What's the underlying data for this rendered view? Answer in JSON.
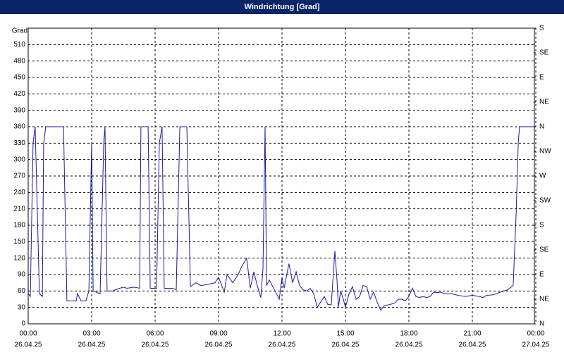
{
  "chart_data": {
    "type": "line",
    "title": "Windrichtung [Grad]",
    "ylabel": "Grad",
    "color": "#1a1aa6",
    "grid": true,
    "xlim": [
      0,
      24
    ],
    "xticks": [
      {
        "value": 0,
        "label": "00:00"
      },
      {
        "value": 3,
        "label": "03:00"
      },
      {
        "value": 6,
        "label": "06:00"
      },
      {
        "value": 9,
        "label": "09:00"
      },
      {
        "value": 12,
        "label": "12:00"
      },
      {
        "value": 15,
        "label": "15:00"
      },
      {
        "value": 18,
        "label": "18:00"
      },
      {
        "value": 21,
        "label": "21:00"
      },
      {
        "value": 24,
        "label": "00:00"
      }
    ],
    "xtick_dates": [
      "26.04.25",
      "26.04.25",
      "26.04.25",
      "26.04.25",
      "26.04.25",
      "26.04.25",
      "26.04.25",
      "26.04.25",
      "27.04.25"
    ],
    "ylim": [
      0,
      540
    ],
    "yticks": [
      0,
      30,
      60,
      90,
      120,
      150,
      180,
      210,
      240,
      270,
      300,
      330,
      360,
      390,
      420,
      450,
      480,
      510
    ],
    "y2lim": [
      0,
      540
    ],
    "y2ticks": [
      {
        "value": 0,
        "label": "N"
      },
      {
        "value": 45,
        "label": "NE"
      },
      {
        "value": 90,
        "label": "E"
      },
      {
        "value": 135,
        "label": "SE"
      },
      {
        "value": 180,
        "label": "S"
      },
      {
        "value": 225,
        "label": "SW"
      },
      {
        "value": 270,
        "label": "W"
      },
      {
        "value": 315,
        "label": "NW"
      },
      {
        "value": 360,
        "label": "N"
      },
      {
        "value": 405,
        "label": "NE"
      },
      {
        "value": 450,
        "label": "E"
      },
      {
        "value": 495,
        "label": "SE"
      },
      {
        "value": 540,
        "label": "S"
      }
    ],
    "x": [
      0,
      0.1,
      0.23,
      0.33,
      0.53,
      0.67,
      0.73,
      0.83,
      1.67,
      1.83,
      2.27,
      2.33,
      2.5,
      2.73,
      2.87,
      3,
      3.07,
      3.4,
      3.57,
      3.63,
      3.73,
      4,
      4.17,
      4.5,
      4.67,
      5,
      5.27,
      5.33,
      5.67,
      5.77,
      6.07,
      6.2,
      6.33,
      6.43,
      6.83,
      7,
      7.17,
      7.5,
      7.67,
      7.93,
      8.17,
      8.5,
      8.83,
      9,
      9.27,
      9.4,
      9.67,
      9.93,
      10.1,
      10.33,
      10.5,
      10.67,
      10.83,
      11,
      11.1,
      11.2,
      11.27,
      11.4,
      11.67,
      11.87,
      12,
      12.1,
      12.33,
      12.5,
      12.67,
      12.83,
      13,
      13.17,
      13.33,
      13.5,
      13.67,
      13.83,
      14,
      14.17,
      14.33,
      14.5,
      14.6,
      14.67,
      14.77,
      14.9,
      15,
      15.17,
      15.33,
      15.5,
      15.67,
      15.83,
      16,
      16.17,
      16.33,
      16.5,
      16.67,
      16.83,
      17.07,
      17.33,
      17.5,
      17.67,
      17.83,
      18,
      18.17,
      18.33,
      18.5,
      18.67,
      18.83,
      19,
      19.17,
      19.33,
      19.5,
      19.67,
      20,
      20.33,
      20.67,
      21,
      21.33,
      21.5,
      21.67,
      22,
      22.33,
      22.67,
      22.93,
      23.07,
      23.17,
      23.23,
      23.93
    ],
    "values": [
      55,
      50,
      330,
      360,
      55,
      50,
      330,
      360,
      360,
      42,
      42,
      55,
      42,
      42,
      60,
      330,
      60,
      55,
      330,
      360,
      60,
      60,
      63,
      67,
      65,
      67,
      65,
      360,
      360,
      65,
      65,
      330,
      360,
      65,
      65,
      62,
      360,
      360,
      68,
      75,
      70,
      72,
      75,
      85,
      58,
      90,
      75,
      90,
      105,
      120,
      65,
      95,
      70,
      48,
      100,
      360,
      70,
      80,
      60,
      45,
      85,
      65,
      110,
      75,
      95,
      70,
      62,
      60,
      65,
      55,
      30,
      40,
      50,
      35,
      35,
      133,
      80,
      30,
      60,
      45,
      30,
      55,
      68,
      45,
      50,
      70,
      68,
      45,
      58,
      40,
      25,
      33,
      35,
      38,
      45,
      45,
      42,
      50,
      65,
      50,
      48,
      50,
      48,
      50,
      58,
      57,
      58,
      55,
      55,
      52,
      50,
      52,
      50,
      48,
      52,
      53,
      58,
      62,
      70,
      200,
      330,
      360,
      360
    ]
  }
}
